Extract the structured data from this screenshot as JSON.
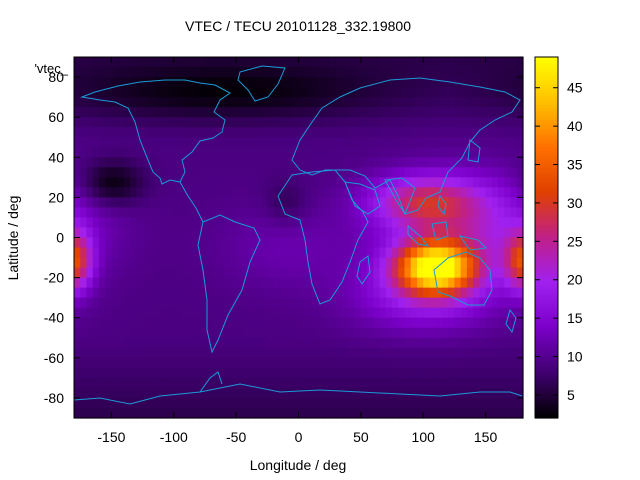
{
  "chart_data": {
    "type": "heatmap",
    "title": "VTEC / TECU 20101128_332.19800",
    "xlabel": "Longitude / deg",
    "ylabel": "Latitude / deg",
    "key_label": "'vtec_",
    "xlim": [
      -180,
      180
    ],
    "ylim": [
      -90,
      90
    ],
    "xticks": [
      -150,
      -100,
      -50,
      0,
      50,
      100,
      150
    ],
    "yticks": [
      -80,
      -60,
      -40,
      -20,
      0,
      20,
      40,
      60,
      80
    ],
    "colorbar": {
      "range": [
        2,
        49
      ],
      "ticks": [
        5,
        10,
        15,
        20,
        25,
        30,
        35,
        40,
        45
      ],
      "palette": [
        "#000000",
        "#400070",
        "#7a00c8",
        "#a020f0",
        "#c02088",
        "#e04000",
        "#ff7000",
        "#ffc000",
        "#ffff00"
      ]
    },
    "grid": {
      "nx": 72,
      "ny": 36,
      "dlon": 5,
      "dlat": 5
    },
    "background_tec": 9,
    "features": [
      {
        "name": "asia-pacific-peak",
        "lon": 110,
        "lat": -15,
        "slon": 22,
        "slat": 9,
        "amp": 38
      },
      {
        "name": "equatorial-anomaly-north",
        "lon": 100,
        "lat": 18,
        "slon": 30,
        "slat": 9,
        "amp": 14
      },
      {
        "name": "equatorial-band-east",
        "lon": 135,
        "lat": 5,
        "slon": 45,
        "slat": 18,
        "amp": 11
      },
      {
        "name": "south-east-asia-belt",
        "lon": 100,
        "lat": -30,
        "slon": 40,
        "slat": 12,
        "amp": 8
      },
      {
        "name": "dateline-west-equatorial",
        "lon": -180,
        "lat": -12,
        "slon": 10,
        "slat": 10,
        "amp": 20
      },
      {
        "name": "atlantic-equatorial",
        "lon": -10,
        "lat": -5,
        "slon": 40,
        "slat": 15,
        "amp": 3
      },
      {
        "name": "north-pacific-low",
        "lon": -150,
        "lat": 27,
        "slon": 18,
        "slat": 8,
        "amp": -7
      },
      {
        "name": "atlantic-low",
        "lon": -10,
        "lat": 17,
        "slon": 12,
        "slat": 8,
        "amp": -3
      },
      {
        "name": "arctic-low",
        "lon": -60,
        "lat": 72,
        "slon": 90,
        "slat": 10,
        "amp": -5
      }
    ]
  }
}
